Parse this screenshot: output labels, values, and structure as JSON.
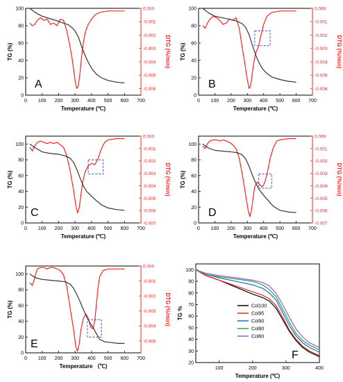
{
  "figure": {
    "background": "#ffffff"
  },
  "colors": {
    "tg": "#333333",
    "dtg": "#ff2020",
    "axis_left": "#000000",
    "axis_right": "#ff2020",
    "box": "#3f51b5"
  },
  "chart_data": [
    {
      "panel": "A",
      "type": "line",
      "xlabel": "Temperature (℃)",
      "ylabel": "TG (%)",
      "y2label": "DTG (%/min)",
      "xlim": [
        0,
        700
      ],
      "ylim": [
        0,
        100
      ],
      "y2lim": [
        -0.0065,
        0.0
      ],
      "xticks": [
        0,
        100,
        200,
        300,
        400,
        500,
        600,
        700
      ],
      "yticks": [
        0,
        20,
        40,
        60,
        80,
        100
      ],
      "y2ticks": [
        0.0,
        -0.001,
        -0.002,
        -0.003,
        -0.004,
        -0.005,
        -0.006
      ],
      "y2ticklabels": [
        "0.000",
        "-0.001",
        "-0.002",
        "-0.003",
        "-0.004",
        "-0.005",
        "-0.006"
      ],
      "tg": {
        "x": [
          25,
          60,
          100,
          150,
          200,
          230,
          260,
          280,
          300,
          320,
          340,
          360,
          380,
          400,
          430,
          460,
          500,
          550,
          600
        ],
        "y": [
          100,
          95,
          91,
          88,
          85,
          83,
          81,
          78,
          74,
          67,
          56,
          46,
          38,
          31,
          24,
          20,
          17,
          15,
          14
        ]
      },
      "dtg": {
        "x": [
          25,
          40,
          55,
          70,
          90,
          110,
          130,
          150,
          170,
          190,
          210,
          230,
          250,
          265,
          280,
          290,
          300,
          310,
          320,
          330,
          340,
          350,
          360,
          370,
          380,
          400,
          420,
          450,
          500,
          550,
          600
        ],
        "y": [
          -0.0011,
          -0.0013,
          -0.0012,
          -0.0009,
          -0.0007,
          -0.0009,
          -0.0008,
          -0.0012,
          -0.0011,
          -0.0013,
          -0.0008,
          -0.0009,
          -0.0017,
          -0.0026,
          -0.0036,
          -0.0045,
          -0.0054,
          -0.006,
          -0.0058,
          -0.0048,
          -0.0036,
          -0.0026,
          -0.0019,
          -0.0015,
          -0.0012,
          -0.0008,
          -0.0005,
          -0.0003,
          -0.0002,
          -0.0002,
          -0.0002
        ]
      },
      "box": null
    },
    {
      "panel": "B",
      "type": "line",
      "xlabel": "Temperature (℃)",
      "ylabel": "TG (%)",
      "y2label": "DTG (%/min)",
      "xlim": [
        0,
        700
      ],
      "ylim": [
        0,
        100
      ],
      "y2lim": [
        -0.0065,
        0.0
      ],
      "xticks": [
        0,
        100,
        200,
        300,
        400,
        500,
        600,
        700
      ],
      "yticks": [
        0,
        20,
        40,
        60,
        80,
        100
      ],
      "y2ticks": [
        0.0,
        -0.001,
        -0.002,
        -0.003,
        -0.004,
        -0.005,
        -0.006
      ],
      "y2ticklabels": [
        "0.000",
        "-0.001",
        "-0.002",
        "-0.003",
        "-0.004",
        "-0.005",
        "-0.006"
      ],
      "tg": {
        "x": [
          25,
          60,
          100,
          150,
          200,
          240,
          270,
          290,
          310,
          330,
          350,
          370,
          390,
          420,
          450,
          500,
          550,
          600
        ],
        "y": [
          100,
          95,
          91,
          89,
          87,
          85,
          82,
          78,
          70,
          58,
          47,
          38,
          31,
          25,
          21,
          18,
          16,
          15
        ]
      },
      "dtg": {
        "x": [
          25,
          40,
          55,
          70,
          90,
          110,
          130,
          150,
          170,
          190,
          210,
          230,
          250,
          265,
          280,
          295,
          310,
          320,
          330,
          340,
          350,
          360,
          370,
          380,
          400,
          420,
          450,
          500,
          550,
          600
        ],
        "y": [
          -0.0013,
          -0.0015,
          -0.0011,
          -0.0008,
          -0.0006,
          -0.0007,
          -0.0009,
          -0.0012,
          -0.0011,
          -0.0008,
          -0.0009,
          -0.0007,
          -0.0015,
          -0.0027,
          -0.0038,
          -0.005,
          -0.006,
          -0.0058,
          -0.0049,
          -0.004,
          -0.0034,
          -0.0031,
          -0.0028,
          -0.0022,
          -0.0012,
          -0.0006,
          -0.0003,
          -0.0002,
          -0.0002,
          -0.0002
        ]
      },
      "box": {
        "x0": 345,
        "x1": 440,
        "y0": 57,
        "y1": 74
      }
    },
    {
      "panel": "C",
      "type": "line",
      "xlabel": "Temperature (℃)",
      "ylabel": "TG (%)",
      "y2label": "DTG (%/min)",
      "xlim": [
        0,
        700
      ],
      "ylim": [
        0,
        110
      ],
      "y2lim": [
        -0.007,
        0.0
      ],
      "xticks": [
        0,
        100,
        200,
        300,
        400,
        500,
        600,
        700
      ],
      "yticks": [
        0,
        20,
        40,
        60,
        80,
        100
      ],
      "y2ticks": [
        0.0,
        -0.001,
        -0.002,
        -0.003,
        -0.004,
        -0.005,
        -0.006,
        -0.007
      ],
      "y2ticklabels": [
        "0.000",
        "-0.001",
        "-0.002",
        "-0.003",
        "-0.004",
        "-0.005",
        "-0.006",
        "-0.007"
      ],
      "tg": {
        "x": [
          25,
          60,
          100,
          150,
          200,
          240,
          270,
          290,
          310,
          330,
          350,
          370,
          400,
          430,
          460,
          500,
          550,
          600
        ],
        "y": [
          100,
          95,
          90,
          88,
          87,
          85,
          82,
          77,
          68,
          57,
          47,
          40,
          34,
          28,
          23,
          19,
          17,
          16
        ]
      },
      "dtg": {
        "x": [
          25,
          40,
          55,
          70,
          90,
          110,
          130,
          150,
          170,
          190,
          210,
          230,
          250,
          270,
          290,
          305,
          315,
          325,
          335,
          345,
          360,
          380,
          400,
          420,
          440,
          460,
          480,
          500,
          550,
          600
        ],
        "y": [
          -0.0009,
          -0.0012,
          -0.0008,
          -0.0005,
          -0.0004,
          -0.0005,
          -0.0006,
          -0.0005,
          -0.0006,
          -0.0005,
          -0.0007,
          -0.0009,
          -0.0016,
          -0.0028,
          -0.0043,
          -0.0056,
          -0.0062,
          -0.0058,
          -0.0048,
          -0.0038,
          -0.0029,
          -0.0024,
          -0.0022,
          -0.0023,
          -0.0018,
          -0.001,
          -0.0005,
          -0.0003,
          -0.0002,
          -0.0002
        ]
      },
      "box": {
        "x0": 380,
        "x1": 470,
        "y0": 62,
        "y1": 80
      }
    },
    {
      "panel": "D",
      "type": "line",
      "xlabel": "Temperature (℃)",
      "ylabel": "TG (%)",
      "y2label": "DTG (%/min)",
      "xlim": [
        0,
        700
      ],
      "ylim": [
        0,
        110
      ],
      "y2lim": [
        -0.007,
        0.0
      ],
      "xticks": [
        0,
        100,
        200,
        300,
        400,
        500,
        600,
        700
      ],
      "yticks": [
        0,
        20,
        40,
        60,
        80,
        100
      ],
      "y2ticks": [
        0.0,
        -0.001,
        -0.002,
        -0.003,
        -0.004,
        -0.005,
        -0.006,
        -0.007
      ],
      "y2ticklabels": [
        "0.000",
        "-0.001",
        "-0.002",
        "-0.003",
        "-0.004",
        "-0.005",
        "-0.006",
        "-0.007"
      ],
      "tg": {
        "x": [
          25,
          60,
          100,
          150,
          200,
          240,
          270,
          290,
          310,
          330,
          350,
          370,
          400,
          430,
          460,
          500,
          550,
          600
        ],
        "y": [
          100,
          95,
          92,
          91,
          90,
          89,
          86,
          81,
          72,
          61,
          51,
          43,
          35,
          28,
          21,
          16,
          14,
          13
        ]
      },
      "dtg": {
        "x": [
          25,
          40,
          55,
          70,
          90,
          110,
          130,
          150,
          170,
          190,
          210,
          230,
          250,
          270,
          290,
          305,
          315,
          325,
          335,
          345,
          360,
          375,
          390,
          405,
          420,
          440,
          460,
          480,
          500,
          550,
          600
        ],
        "y": [
          -0.0008,
          -0.001,
          -0.0006,
          -0.0004,
          -0.0003,
          -0.0003,
          -0.0004,
          -0.0003,
          -0.0004,
          -0.0005,
          -0.0007,
          -0.001,
          -0.0018,
          -0.0032,
          -0.0048,
          -0.006,
          -0.0065,
          -0.006,
          -0.005,
          -0.0041,
          -0.0037,
          -0.0039,
          -0.0041,
          -0.0038,
          -0.0031,
          -0.0018,
          -0.0009,
          -0.0004,
          -0.0003,
          -0.0002,
          -0.0002
        ]
      },
      "box": {
        "x0": 370,
        "x1": 450,
        "y0": 44,
        "y1": 62
      }
    },
    {
      "panel": "E",
      "type": "line",
      "xlabel": "Temperature （℃)",
      "ylabel": "TG (%)",
      "y2label": "DTG (%/min)",
      "xlim": [
        0,
        700
      ],
      "ylim": [
        0,
        110
      ],
      "y2lim": [
        -0.0058,
        0.0
      ],
      "xticks": [
        0,
        100,
        200,
        300,
        400,
        500,
        600,
        700
      ],
      "yticks": [
        0,
        20,
        40,
        60,
        80,
        100
      ],
      "y2ticks": [
        0.0,
        -0.001,
        -0.002,
        -0.003,
        -0.004,
        -0.005
      ],
      "y2ticklabels": [
        "0.000",
        "-0.001",
        "-0.002",
        "-0.003",
        "-0.004",
        "-0.005"
      ],
      "tg": {
        "x": [
          25,
          60,
          100,
          150,
          200,
          240,
          270,
          290,
          310,
          330,
          350,
          370,
          390,
          410,
          430,
          450,
          480,
          520,
          560,
          600
        ],
        "y": [
          100,
          95,
          93,
          92,
          91,
          90,
          87,
          82,
          74,
          65,
          55,
          46,
          38,
          32,
          24,
          17,
          14,
          13,
          12,
          12
        ]
      },
      "dtg": {
        "x": [
          25,
          40,
          55,
          70,
          90,
          110,
          130,
          150,
          170,
          190,
          210,
          230,
          250,
          270,
          290,
          305,
          315,
          325,
          335,
          350,
          365,
          380,
          395,
          410,
          420,
          430,
          440,
          450,
          470,
          500,
          550,
          600
        ],
        "y": [
          -0.0011,
          -0.0013,
          -0.0008,
          -0.0002,
          -0.0001,
          -0.0001,
          -0.0002,
          -0.0001,
          -0.0001,
          -0.0002,
          -0.0003,
          -0.0006,
          -0.0014,
          -0.0028,
          -0.0042,
          -0.0054,
          -0.0057,
          -0.0052,
          -0.0043,
          -0.0035,
          -0.0032,
          -0.0035,
          -0.0041,
          -0.0042,
          -0.0036,
          -0.0025,
          -0.0014,
          -0.0007,
          -0.0003,
          -0.0002,
          -0.0002,
          -0.0002
        ]
      },
      "box": {
        "x0": 375,
        "x1": 460,
        "y0": 20,
        "y1": 42
      }
    },
    {
      "panel": "F",
      "type": "line",
      "xlabel": "Temperature (℃)",
      "ylabel": "TG %",
      "xlim": [
        30,
        400
      ],
      "ylim": [
        20,
        105
      ],
      "xticks": [
        100,
        200,
        300,
        400
      ],
      "yticks": [
        20,
        30,
        40,
        50,
        60,
        70,
        80,
        90,
        100
      ],
      "series": [
        {
          "name": "Col100",
          "color": "#000000",
          "x": [
            30,
            60,
            100,
            150,
            200,
            230,
            250,
            270,
            290,
            310,
            330,
            350,
            370,
            400
          ],
          "y": [
            100,
            95,
            91,
            85,
            79,
            76,
            73,
            67,
            57,
            47,
            39,
            33,
            29,
            25
          ]
        },
        {
          "name": "Col95",
          "color": "#e2231a",
          "x": [
            30,
            60,
            100,
            150,
            200,
            230,
            250,
            270,
            290,
            310,
            330,
            350,
            370,
            400
          ],
          "y": [
            100,
            95,
            91,
            86,
            81,
            78,
            75,
            69,
            59,
            48,
            40,
            34,
            30,
            26
          ]
        },
        {
          "name": "Col90",
          "color": "#1a6fc2",
          "x": [
            30,
            60,
            100,
            150,
            200,
            230,
            250,
            270,
            290,
            310,
            330,
            350,
            370,
            400
          ],
          "y": [
            100,
            96,
            93,
            90,
            87,
            84,
            80,
            74,
            63,
            52,
            43,
            37,
            33,
            29
          ]
        },
        {
          "name": "Col80",
          "color": "#2aa34a",
          "x": [
            30,
            60,
            100,
            150,
            200,
            230,
            250,
            270,
            290,
            310,
            330,
            350,
            370,
            400
          ],
          "y": [
            100,
            96,
            94,
            92,
            90,
            87,
            83,
            77,
            66,
            55,
            45,
            39,
            35,
            31
          ]
        },
        {
          "name": "Col60",
          "color": "#a256c8",
          "x": [
            30,
            60,
            100,
            150,
            200,
            230,
            250,
            270,
            290,
            310,
            330,
            350,
            370,
            400
          ],
          "y": [
            100,
            97,
            95,
            93,
            91,
            89,
            86,
            80,
            70,
            59,
            49,
            42,
            37,
            33
          ]
        }
      ],
      "legend": "bottom-left"
    }
  ]
}
